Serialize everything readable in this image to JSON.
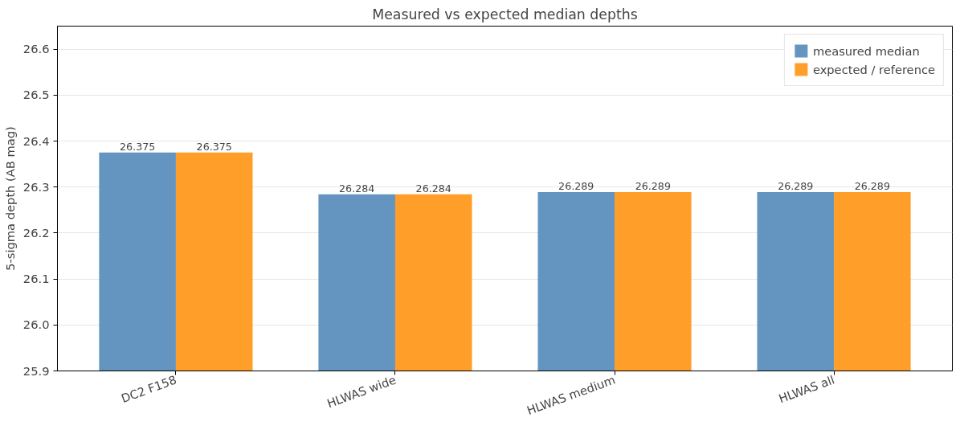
{
  "chart_data": {
    "type": "bar",
    "title": "Measured vs expected median depths",
    "ylabel": "5-sigma depth (AB mag)",
    "categories": [
      "DC2 F158",
      "HLWAS wide",
      "HLWAS medium",
      "HLWAS all"
    ],
    "series": [
      {
        "name": "measured median",
        "color": "#6495c0",
        "values": [
          26.375,
          26.284,
          26.289,
          26.289
        ]
      },
      {
        "name": "expected / reference",
        "color": "#ff9f2a",
        "values": [
          26.375,
          26.284,
          26.289,
          26.289
        ]
      }
    ],
    "ylim": [
      25.9,
      26.65
    ],
    "yticks": [
      25.9,
      {
        "value": 26.0,
        "label": "26.0"
      },
      26.1,
      26.2,
      26.3,
      26.4,
      26.5,
      26.6
    ],
    "grid": "y",
    "legend": "top right",
    "data_labels": true
  }
}
